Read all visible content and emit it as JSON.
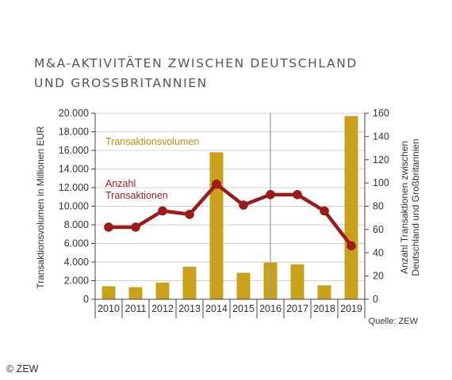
{
  "chart_data": {
    "type": "bar",
    "title_lines": [
      "M&A-AKTIVITÄTEN ZWISCHEN DEUTSCHLAND",
      "UND GROSSBRITANNIEN"
    ],
    "categories": [
      "2010",
      "2011",
      "2012",
      "2013",
      "2014",
      "2015",
      "2016",
      "2017",
      "2018",
      "2019"
    ],
    "series": [
      {
        "name": "Transaktionsvolumen",
        "type": "bar",
        "axis": "left",
        "values": [
          1400,
          1300,
          1800,
          3500,
          15800,
          2850,
          3950,
          3750,
          1500,
          19700
        ],
        "color": "#c9a11a"
      },
      {
        "name": "Anzahl Transaktionen",
        "type": "line",
        "axis": "right",
        "values": [
          62,
          62,
          76,
          73,
          99,
          81,
          90,
          90,
          76,
          46
        ],
        "color": "#9b1b1b"
      }
    ],
    "legend_lines": {
      "volume": [
        "Transaktionsvolumen"
      ],
      "count": [
        "Anzahl",
        "Transaktionen"
      ]
    },
    "y_left": {
      "label": "Transaktionsvolumen in Millionen EUR",
      "ylim": [
        0,
        20000
      ],
      "ticks": [
        0,
        2000,
        4000,
        6000,
        8000,
        10000,
        12000,
        14000,
        16000,
        18000,
        20000
      ],
      "tick_labels": [
        "0",
        "2.000",
        "4.000",
        "6.000",
        "8.000",
        "10.000",
        "12.000",
        "14.000",
        "16.000",
        "18.000",
        "20.000"
      ]
    },
    "y_right": {
      "label_lines": [
        "Anzahl Transaktionen zwischen",
        "Deutschland und Großbritannien"
      ],
      "ylim": [
        0,
        160
      ],
      "ticks": [
        0,
        20,
        40,
        60,
        80,
        100,
        120,
        140,
        160
      ],
      "tick_labels": [
        "0",
        "20",
        "40",
        "60",
        "80",
        "100",
        "120",
        "140",
        "160"
      ]
    },
    "marker_line_category": "2016",
    "grid": true,
    "source": "Quelle: ZEW",
    "copyright": "© ZEW",
    "colors": {
      "grid": "#cfcfcf",
      "axis": "#444444",
      "marker_line": "#9a9a9a"
    }
  }
}
